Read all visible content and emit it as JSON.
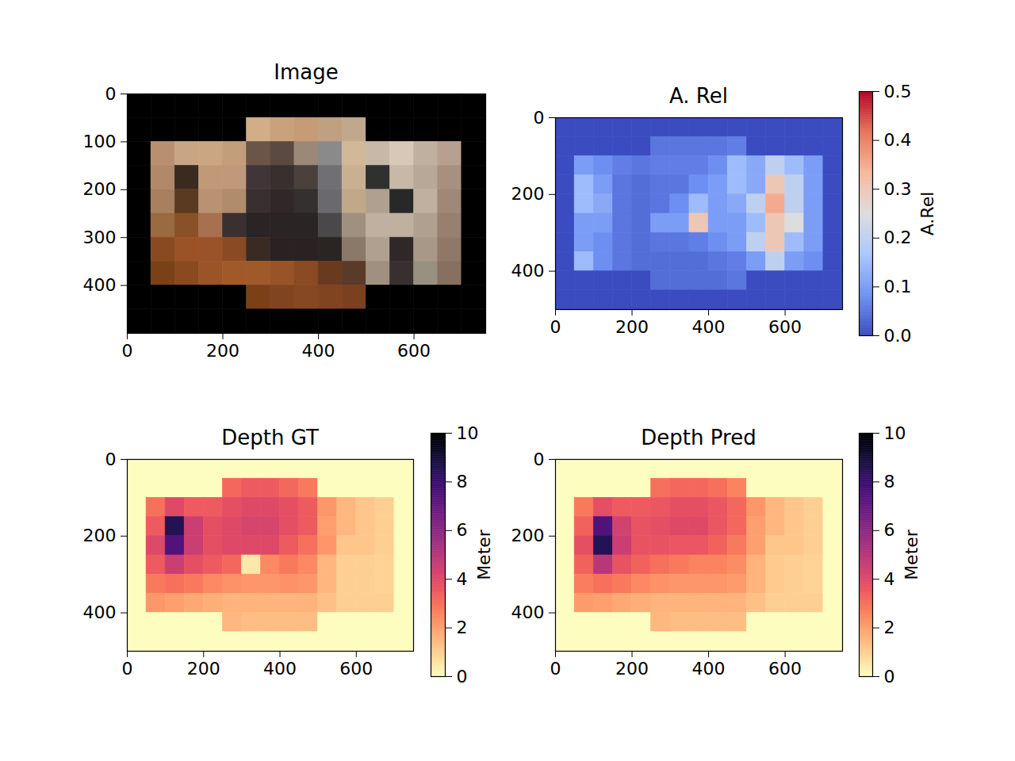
{
  "chart_data": [
    {
      "type": "image",
      "title": "Image",
      "xlim": [
        0,
        750
      ],
      "ylim": [
        500,
        0
      ],
      "xticks": [
        0,
        200,
        400,
        600
      ],
      "yticks": [
        0,
        100,
        200,
        300,
        400
      ],
      "cells": [
        [
          "#000000",
          "#000000",
          "#000000",
          "#000000",
          "#000000",
          "#000000",
          "#000000",
          "#000000",
          "#000000",
          "#000000",
          "#000000",
          "#000000",
          "#000000",
          "#000000",
          "#000000"
        ],
        [
          "#000000",
          "#000000",
          "#000000",
          "#000000",
          "#000000",
          "#d2ae88",
          "#c9a27c",
          "#c59c76",
          "#bfa080",
          "#c0a88c",
          "#000000",
          "#000000",
          "#000000",
          "#000000",
          "#000000"
        ],
        [
          "#000000",
          "#b89070",
          "#c8a684",
          "#caa682",
          "#c49e7a",
          "#6a5548",
          "#5a4a42",
          "#9a8878",
          "#8a8a8a",
          "#d0b898",
          "#c8b8a8",
          "#d8c8b8",
          "#c0b0a0",
          "#b8a090",
          "#000000"
        ],
        [
          "#000000",
          "#b08a68",
          "#3a2a20",
          "#c09a76",
          "#c0987a",
          "#40363a",
          "#38302e",
          "#4a403c",
          "#707074",
          "#c8b090",
          "#303030",
          "#c8b8a8",
          "#b8a898",
          "#a89080",
          "#000000"
        ],
        [
          "#000000",
          "#a88060",
          "#5a3a20",
          "#b89272",
          "#b08c6c",
          "#383030",
          "#302828",
          "#343030",
          "#6a6a6e",
          "#c0a888",
          "#b0a090",
          "#282828",
          "#c0b0a0",
          "#a08878",
          "#000000"
        ],
        [
          "#000000",
          "#9a6a40",
          "#8a5028",
          "#a87050",
          "#3a3030",
          "#2a2424",
          "#2a2424",
          "#2a2424",
          "#4a4848",
          "#a09080",
          "#c0b0a0",
          "#c0b0a0",
          "#b0a090",
          "#988070",
          "#000000"
        ],
        [
          "#000000",
          "#8a4a20",
          "#9a5226",
          "#9a5228",
          "#8a4a24",
          "#3a2a22",
          "#2a2222",
          "#2a2222",
          "#2a2422",
          "#8a7868",
          "#b0a090",
          "#302828",
          "#a89888",
          "#907868",
          "#000000"
        ],
        [
          "#000000",
          "#7a4018",
          "#8a4a20",
          "#9a5428",
          "#a05a2a",
          "#a05a2a",
          "#985428",
          "#8a4a24",
          "#6a3a20",
          "#5a3a28",
          "#a09080",
          "#383030",
          "#989080",
          "#887060",
          "#000000"
        ],
        [
          "#000000",
          "#000000",
          "#000000",
          "#000000",
          "#000000",
          "#7a4018",
          "#804420",
          "#864822",
          "#804420",
          "#7a4020",
          "#000000",
          "#000000",
          "#000000",
          "#000000",
          "#000000"
        ],
        [
          "#000000",
          "#000000",
          "#000000",
          "#000000",
          "#000000",
          "#000000",
          "#000000",
          "#000000",
          "#000000",
          "#000000",
          "#000000",
          "#000000",
          "#000000",
          "#000000",
          "#000000"
        ]
      ]
    },
    {
      "type": "heatmap",
      "title": "A. Rel",
      "xlim": [
        0,
        750
      ],
      "ylim": [
        500,
        0
      ],
      "xticks": [
        0,
        200,
        400,
        600
      ],
      "yticks": [
        0,
        200,
        400
      ],
      "cells": [
        [
          0,
          0,
          0,
          0,
          0,
          0,
          0,
          0,
          0,
          0,
          0,
          0,
          0,
          0,
          0
        ],
        [
          0,
          0,
          0,
          0,
          0,
          0.05,
          0.05,
          0.05,
          0.05,
          0.06,
          0,
          0,
          0,
          0,
          0
        ],
        [
          0,
          0.1,
          0.08,
          0.06,
          0.05,
          0.06,
          0.06,
          0.06,
          0.08,
          0.15,
          0.12,
          0.2,
          0.15,
          0.1,
          0
        ],
        [
          0,
          0.15,
          0.1,
          0.05,
          0.04,
          0.05,
          0.05,
          0.08,
          0.1,
          0.15,
          0.12,
          0.3,
          0.2,
          0.1,
          0
        ],
        [
          0,
          0.15,
          0.12,
          0.05,
          0.04,
          0.05,
          0.08,
          0.15,
          0.1,
          0.12,
          0.2,
          0.35,
          0.2,
          0.1,
          0
        ],
        [
          0,
          0.1,
          0.1,
          0.05,
          0.04,
          0.1,
          0.1,
          0.3,
          0.1,
          0.1,
          0.15,
          0.3,
          0.25,
          0.1,
          0
        ],
        [
          0,
          0.1,
          0.08,
          0.05,
          0.04,
          0.05,
          0.05,
          0.06,
          0.08,
          0.1,
          0.2,
          0.3,
          0.15,
          0.1,
          0
        ],
        [
          0,
          0.15,
          0.08,
          0.05,
          0.04,
          0.04,
          0.04,
          0.04,
          0.05,
          0.06,
          0.1,
          0.2,
          0.1,
          0.08,
          0
        ],
        [
          0,
          0,
          0,
          0,
          0,
          0.04,
          0.04,
          0.04,
          0.04,
          0.05,
          0,
          0,
          0,
          0,
          0
        ],
        [
          0,
          0,
          0,
          0,
          0,
          0,
          0,
          0,
          0,
          0,
          0,
          0,
          0,
          0,
          0
        ]
      ],
      "colorbar": {
        "label": "A.Rel",
        "range": [
          0,
          0.5
        ],
        "ticks": [
          {
            "value": 0,
            "label": "0.0"
          },
          0.1,
          0.2,
          0.3,
          0.4,
          0.5
        ]
      }
    },
    {
      "type": "heatmap",
      "title": "Depth GT",
      "xlim": [
        0,
        750
      ],
      "ylim": [
        500,
        0
      ],
      "xticks": [
        0,
        200,
        400,
        600
      ],
      "yticks": [
        0,
        200,
        400
      ],
      "cells": [
        [
          0,
          0,
          0,
          0,
          0,
          0,
          0,
          0,
          0,
          0,
          0,
          0,
          0,
          0,
          0
        ],
        [
          0,
          0,
          0,
          0,
          0,
          3.2,
          3.5,
          3.5,
          3.2,
          2.8,
          0,
          0,
          0,
          0,
          0
        ],
        [
          0,
          3.0,
          4.0,
          3.5,
          3.5,
          3.8,
          4.0,
          4.0,
          3.8,
          3.5,
          2.2,
          1.5,
          1.2,
          1.0,
          0
        ],
        [
          0,
          3.5,
          8.5,
          4.5,
          3.8,
          4.0,
          4.2,
          4.2,
          3.8,
          3.5,
          2.0,
          1.5,
          1.2,
          1.0,
          0
        ],
        [
          0,
          4.0,
          7.5,
          4.5,
          3.8,
          4.0,
          4.0,
          4.0,
          3.5,
          3.0,
          2.2,
          1.2,
          1.2,
          1.0,
          0
        ],
        [
          0,
          3.5,
          4.5,
          3.8,
          3.5,
          3.2,
          0.5,
          2.5,
          2.8,
          2.5,
          1.5,
          1.0,
          1.0,
          0.9,
          0
        ],
        [
          0,
          2.8,
          3.0,
          2.8,
          2.5,
          2.3,
          2.2,
          2.2,
          2.3,
          2.2,
          1.5,
          1.0,
          1.0,
          0.9,
          0
        ],
        [
          0,
          2.2,
          2.0,
          1.8,
          1.7,
          1.6,
          1.6,
          1.6,
          1.6,
          1.6,
          1.3,
          1.0,
          1.0,
          1.0,
          0
        ],
        [
          0,
          0,
          0,
          0,
          0,
          1.5,
          1.4,
          1.4,
          1.4,
          1.4,
          0,
          0,
          0,
          0,
          0
        ],
        [
          0,
          0,
          0,
          0,
          0,
          0,
          0,
          0,
          0,
          0,
          0,
          0,
          0,
          0,
          0
        ]
      ],
      "colorbar": {
        "label": "Meter",
        "range": [
          0,
          10
        ],
        "ticks": [
          0,
          2,
          4,
          6,
          8,
          10
        ]
      }
    },
    {
      "type": "heatmap",
      "title": "Depth Pred",
      "xlim": [
        0,
        750
      ],
      "ylim": [
        500,
        0
      ],
      "xticks": [
        0,
        200,
        400,
        600
      ],
      "yticks": [
        0,
        200,
        400
      ],
      "cells": [
        [
          0,
          0,
          0,
          0,
          0,
          0,
          0,
          0,
          0,
          0,
          0,
          0,
          0,
          0,
          0
        ],
        [
          0,
          0,
          0,
          0,
          0,
          3.0,
          3.2,
          3.2,
          3.0,
          2.6,
          0,
          0,
          0,
          0,
          0
        ],
        [
          0,
          2.8,
          3.8,
          3.5,
          3.5,
          3.6,
          3.8,
          3.8,
          3.6,
          3.2,
          2.2,
          1.5,
          1.2,
          1.0,
          0
        ],
        [
          0,
          3.3,
          7.5,
          4.3,
          3.7,
          3.8,
          4.0,
          4.0,
          3.6,
          3.2,
          2.0,
          1.5,
          1.2,
          1.0,
          0
        ],
        [
          0,
          3.8,
          8.5,
          4.5,
          3.7,
          3.7,
          3.6,
          3.6,
          3.3,
          2.8,
          2.0,
          1.2,
          1.2,
          1.0,
          0
        ],
        [
          0,
          3.3,
          5.0,
          3.7,
          3.3,
          3.0,
          2.8,
          2.6,
          2.6,
          2.4,
          1.6,
          1.1,
          1.0,
          0.9,
          0
        ],
        [
          0,
          2.7,
          3.0,
          2.8,
          2.5,
          2.3,
          2.2,
          2.2,
          2.2,
          2.1,
          1.6,
          1.1,
          1.0,
          0.9,
          0
        ],
        [
          0,
          2.1,
          2.0,
          1.8,
          1.7,
          1.6,
          1.6,
          1.6,
          1.6,
          1.6,
          1.3,
          1.0,
          1.0,
          1.0,
          0
        ],
        [
          0,
          0,
          0,
          0,
          0,
          1.5,
          1.4,
          1.4,
          1.4,
          1.4,
          0,
          0,
          0,
          0,
          0
        ],
        [
          0,
          0,
          0,
          0,
          0,
          0,
          0,
          0,
          0,
          0,
          0,
          0,
          0,
          0,
          0
        ]
      ],
      "colorbar": {
        "label": "Meter",
        "range": [
          0,
          10
        ],
        "ticks": [
          0,
          2,
          4,
          6,
          8,
          10
        ]
      }
    }
  ]
}
